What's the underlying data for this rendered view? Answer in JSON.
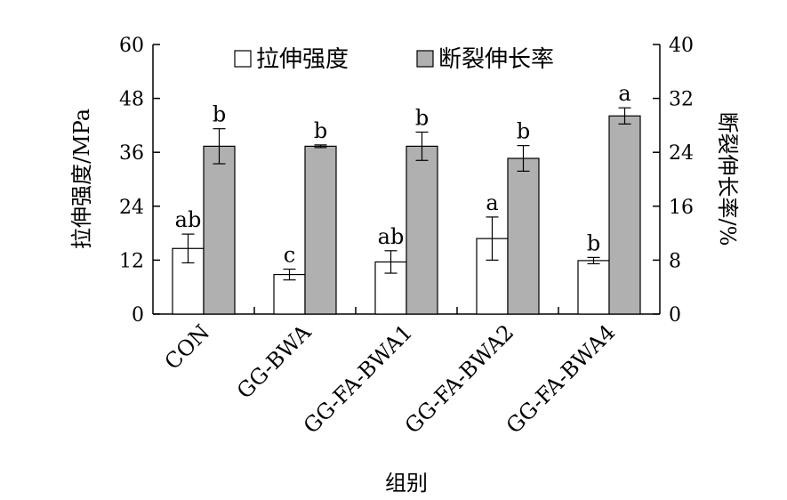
{
  "chart_data": {
    "type": "bar",
    "xlabel": "组别",
    "ylabel": "拉伸强度/MPa",
    "y2label": "断裂伸长率/%",
    "ylim": [
      0,
      60
    ],
    "y_ticks": [
      "0",
      "12",
      "24",
      "36",
      "48",
      "60"
    ],
    "y2lim": [
      0,
      40
    ],
    "y2_ticks": [
      "0",
      "8",
      "16",
      "24",
      "32",
      "40"
    ],
    "legend_position": "top",
    "categories": [
      "CON",
      "GG-BWA",
      "GG-FA-BWA1",
      "GG-FA-BWA2",
      "GG-FA-BWA4"
    ],
    "series": [
      {
        "name": "拉伸强度",
        "axis": "left",
        "color": "#ffffff",
        "values": [
          14.6,
          8.8,
          11.6,
          16.8,
          11.9
        ],
        "errors": [
          3.2,
          1.2,
          2.5,
          4.8,
          0.7
        ],
        "labels": [
          "ab",
          "c",
          "ab",
          "a",
          "b"
        ]
      },
      {
        "name": "断裂伸长率",
        "axis": "right",
        "color": "#b0b0b0",
        "values": [
          24.9,
          24.9,
          24.9,
          23.1,
          29.4
        ],
        "errors": [
          2.6,
          0.2,
          2.1,
          1.9,
          1.2
        ],
        "labels": [
          "b",
          "b",
          "b",
          "b",
          "a"
        ]
      }
    ]
  }
}
